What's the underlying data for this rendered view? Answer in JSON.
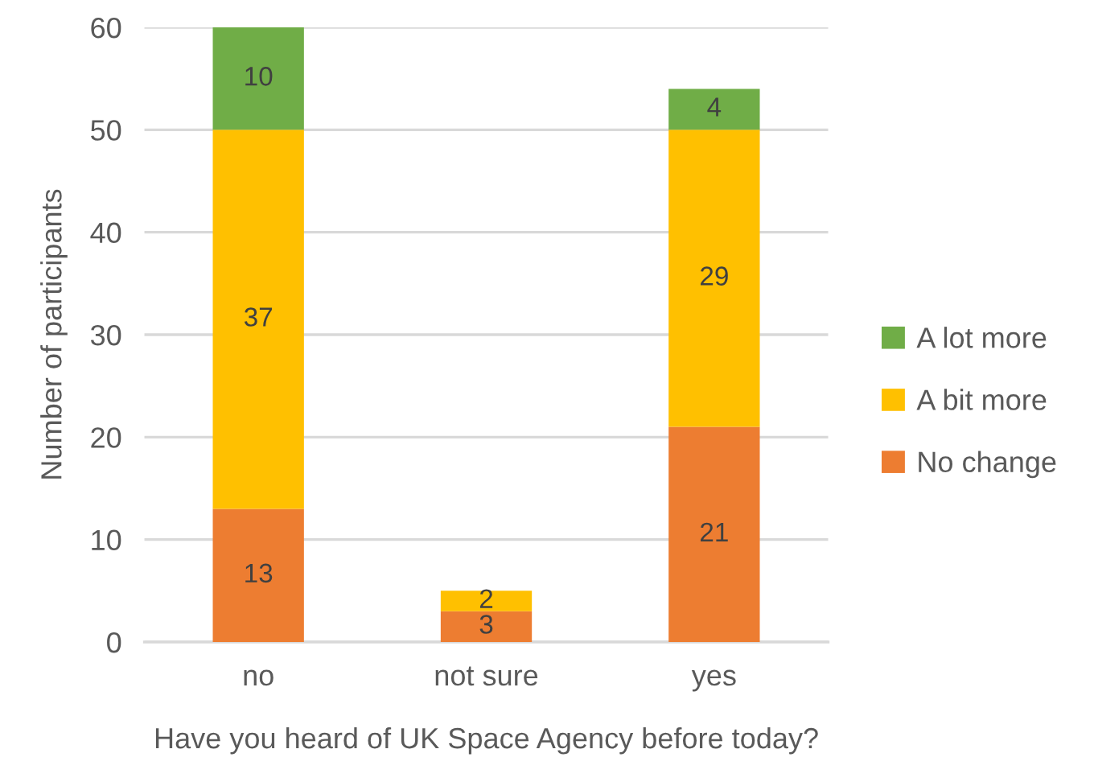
{
  "chart_data": {
    "type": "bar",
    "stacked": true,
    "xlabel": "Have you heard of UK Space Agency before today?",
    "ylabel": "Number of participants",
    "categories": [
      "no",
      "not sure",
      "yes"
    ],
    "series": [
      {
        "name": "No change",
        "color": "#ed7d31",
        "values": [
          13,
          3,
          21
        ]
      },
      {
        "name": "A bit more",
        "color": "#ffc000",
        "values": [
          37,
          2,
          29
        ]
      },
      {
        "name": "A lot more",
        "color": "#70ad47",
        "values": [
          10,
          null,
          4
        ]
      }
    ],
    "ylim": [
      0,
      60
    ],
    "yticks": [
      0,
      10,
      20,
      30,
      40,
      50,
      60
    ],
    "grid": "y",
    "legend": "right",
    "data_labels": true
  }
}
